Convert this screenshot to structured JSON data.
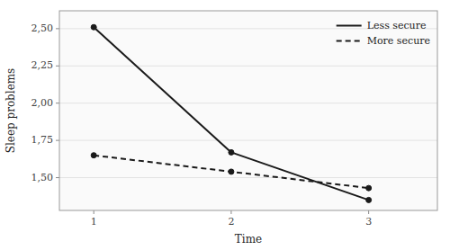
{
  "chart_data": {
    "type": "line",
    "x": [
      1,
      2,
      3
    ],
    "series": [
      {
        "name": "Less secure",
        "color": "#1a1a1a",
        "values": [
          2.51,
          1.67,
          1.35
        ],
        "line_style": "solid",
        "marker": "circle"
      },
      {
        "name": "More secure",
        "color": "#1a1a1a",
        "values": [
          1.65,
          1.54,
          1.43
        ],
        "line_style": "dashed",
        "marker": "circle"
      }
    ],
    "xlabel": "Time",
    "ylabel": "Sleep problems",
    "xlim": [
      0.75,
      3.5
    ],
    "ylim": [
      1.28,
      2.62
    ],
    "xticks": [
      1,
      2,
      3
    ],
    "yticks": [
      {
        "value": 1.5,
        "label": "1,50"
      },
      {
        "value": 1.75,
        "label": "1,75"
      },
      {
        "value": 2.0,
        "label": "2,00"
      },
      {
        "value": 2.25,
        "label": "2,25"
      },
      {
        "value": 2.5,
        "label": "2,50"
      }
    ],
    "grid": "y",
    "legend": "upper right"
  }
}
